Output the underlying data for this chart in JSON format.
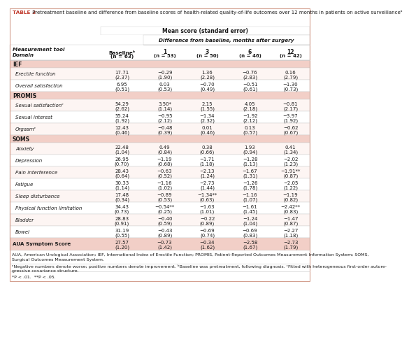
{
  "title_bold": "TABLE 3",
  "title_rest": " Pretreatment baseline and difference from baseline scores of health-related quality-of-life outcomes over 12 months in patients on active surveillanceᵃ",
  "header_mean": "Mean score (standard error)",
  "header_diff": "Difference from baseline, months after surgery",
  "col_headers_row1": [
    "Measurement tool",
    "Baselineᵇ",
    "1",
    "3",
    "6",
    "12"
  ],
  "col_headers_row2": [
    "Domain",
    "(n = 63)",
    "(n = 53)",
    "(n = 50)",
    "(n = 46)",
    "(n = 42)"
  ],
  "sections": [
    {
      "name": "IEF",
      "rows": [
        {
          "label": "Erectile function",
          "v0": "17.71",
          "v0b": "(2.37)",
          "v1": "−0.29",
          "v1b": "(1.90)",
          "v2": "1.36",
          "v2b": "(2.28)",
          "v3": "−0.76",
          "v3b": "(2.83)",
          "v4": "0.16",
          "v4b": "(2.79)"
        },
        {
          "label": "Overall satisfaction",
          "v0": "6.95",
          "v0b": "(0.51)",
          "v1": "0.03",
          "v1b": "(0.53)",
          "v2": "−0.70",
          "v2b": "(0.49)",
          "v3": "−0.51",
          "v3b": "(0.61)",
          "v4": "−1.30",
          "v4b": "(0.73)"
        }
      ]
    },
    {
      "name": "PROMIS",
      "rows": [
        {
          "label": "Sexual satisfactionᶜ",
          "v0": "54.29",
          "v0b": "(2.62)",
          "v1": "3.50*",
          "v1b": "(1.14)",
          "v2": "2.15",
          "v2b": "(1.55)",
          "v3": "4.05",
          "v3b": "(2.18)",
          "v4": "−0.81",
          "v4b": "(2.17)"
        },
        {
          "label": "Sexual interest",
          "v0": "55.24",
          "v0b": "(1.92)",
          "v1": "−0.95",
          "v1b": "(2.12)",
          "v2": "−1.34",
          "v2b": "(2.32)",
          "v3": "−1.92",
          "v3b": "(2.12)",
          "v4": "−3.97",
          "v4b": "(1.92)"
        },
        {
          "label": "Orgasmᶜ",
          "v0": "12.43",
          "v0b": "(0.46)",
          "v1": "−0.48",
          "v1b": "(0.39)",
          "v2": "0.01",
          "v2b": "(0.46)",
          "v3": "0.13",
          "v3b": "(0.57)",
          "v4": "−0.62",
          "v4b": "(0.67)"
        }
      ]
    },
    {
      "name": "SOMS",
      "rows": [
        {
          "label": "Anxiety",
          "v0": "22.48",
          "v0b": "(1.04)",
          "v1": "0.49",
          "v1b": "(0.84)",
          "v2": "0.38",
          "v2b": "(0.66)",
          "v3": "1.93",
          "v3b": "(0.94)",
          "v4": "0.41",
          "v4b": "(1.34)"
        },
        {
          "label": "Depression",
          "v0": "26.95",
          "v0b": "(0.70)",
          "v1": "−1.19",
          "v1b": "(0.68)",
          "v2": "−1.71",
          "v2b": "(1.18)",
          "v3": "−1.28",
          "v3b": "(1.13)",
          "v4": "−2.02",
          "v4b": "(1.23)"
        },
        {
          "label": "Pain interference",
          "v0": "28.43",
          "v0b": "(0.64)",
          "v1": "−0.63",
          "v1b": "(0.52)",
          "v2": "−2.13",
          "v2b": "(1.24)",
          "v3": "−1.67",
          "v3b": "(1.31)",
          "v4": "−1.91**",
          "v4b": "(0.87)"
        },
        {
          "label": "Fatigue",
          "v0": "30.33",
          "v0b": "(1.14)",
          "v1": "−1.16",
          "v1b": "(1.02)",
          "v2": "−2.73",
          "v2b": "(1.44)",
          "v3": "−1.26",
          "v3b": "(1.78)",
          "v4": "−2.05",
          "v4b": "(1.22)"
        },
        {
          "label": "Sleep disturbance",
          "v0": "17.48",
          "v0b": "(0.34)",
          "v1": "−0.89",
          "v1b": "(0.53)",
          "v2": "−1.34**",
          "v2b": "(0.63)",
          "v3": "−1.16",
          "v3b": "(1.07)",
          "v4": "−1.19",
          "v4b": "(0.82)"
        },
        {
          "label": "Physical function limitation",
          "v0": "34.43",
          "v0b": "(0.73)",
          "v1": "−0.54**",
          "v1b": "(0.25)",
          "v2": "−1.63",
          "v2b": "(1.01)",
          "v3": "−1.61",
          "v3b": "(1.45)",
          "v4": "−2.42**",
          "v4b": "(0.83)"
        },
        {
          "label": "Bladder",
          "v0": "28.83",
          "v0b": "(0.91)",
          "v1": "−0.40",
          "v1b": "(0.59)",
          "v2": "−0.22",
          "v2b": "(0.89)",
          "v3": "−1.24",
          "v3b": "(1.04)",
          "v4": "−1.47",
          "v4b": "(0.87)"
        },
        {
          "label": "Bowel",
          "v0": "31.19",
          "v0b": "(0.55)",
          "v1": "−0.43",
          "v1b": "(0.89)",
          "v2": "−0.69",
          "v2b": "(0.74)",
          "v3": "−0.69",
          "v3b": "(0.83)",
          "v4": "−2.27",
          "v4b": "(1.18)"
        }
      ]
    }
  ],
  "aua_row": {
    "label": "AUA Symptom Score",
    "v0": "27.57",
    "v0b": "(1.20)",
    "v1": "−0.73",
    "v1b": "(1.42)",
    "v2": "−0.34",
    "v2b": "(1.62)",
    "v3": "−2.58",
    "v3b": "(1.67)",
    "v4": "−2.73",
    "v4b": "(1.79)"
  },
  "footnote1": "AUA, American Urological Association; IEF, International Index of Erectile Function; PROMIS, Patient-Reported Outcomes Measurement Information System; SOMS,",
  "footnote2": "Surgical Outcomes Measurement System.",
  "footnote3": "ᵃNegative numbers denote worse; positive numbers denote improvement. ᵇBaseline was pretreatment, following diagnosis. ᶜFitted with heterogeneous first-order autore-",
  "footnote4": "gressive covariance structure.",
  "footnote5": "*P < .01.  **P < .05.",
  "bg_salmon": "#f2cfc7",
  "bg_white": "#ffffff",
  "bg_light": "#fdf5f3",
  "border_outer": "#d4a090",
  "border_inner": "#cccccc",
  "text_dark": "#1a1a1a",
  "text_red": "#c0392b"
}
